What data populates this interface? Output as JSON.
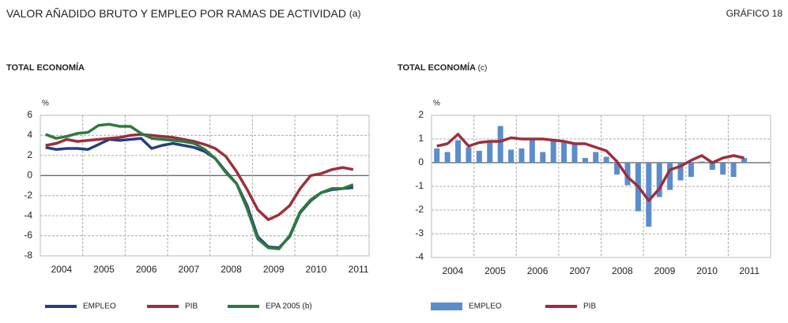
{
  "header": {
    "title": "VALOR AÑADIDO BRUTO Y EMPLEO POR RAMAS DE ACTIVIDAD",
    "title_note": "(a)",
    "figure": "GRÁFICO 18"
  },
  "chart_data": [
    {
      "type": "line",
      "title": "TOTAL ECONOMÍA",
      "ylabel": "%",
      "x": [
        2004.125,
        2004.375,
        2004.625,
        2004.875,
        2005.125,
        2005.375,
        2005.625,
        2005.875,
        2006.125,
        2006.375,
        2006.625,
        2006.875,
        2007.125,
        2007.375,
        2007.625,
        2007.875,
        2008.125,
        2008.375,
        2008.625,
        2008.875,
        2009.125,
        2009.375,
        2009.625,
        2009.875,
        2010.125,
        2010.375,
        2010.625,
        2010.875,
        2011.125,
        2011.375
      ],
      "xlim": [
        2004,
        2011.75
      ],
      "xticks": [
        {
          "value": 2004.5,
          "label": "2004"
        },
        {
          "value": 2005.5,
          "label": "2005"
        },
        {
          "value": 2006.5,
          "label": "2006"
        },
        {
          "value": 2007.5,
          "label": "2007"
        },
        {
          "value": 2008.5,
          "label": "2008"
        },
        {
          "value": 2009.5,
          "label": "2009"
        },
        {
          "value": 2010.5,
          "label": "2010"
        },
        {
          "value": 2011.5,
          "label": "2011"
        }
      ],
      "ylim": [
        -8,
        6
      ],
      "yticks": [
        -8,
        -6,
        -4,
        -2,
        0,
        2,
        4,
        6
      ],
      "grid": true,
      "series": [
        {
          "name": "EMPLEO",
          "color": "#243f80",
          "values": [
            2.8,
            2.6,
            2.7,
            2.7,
            2.6,
            3.1,
            3.6,
            3.5,
            3.6,
            3.7,
            2.7,
            3.0,
            3.2,
            3.0,
            2.8,
            2.4,
            1.7,
            0.4,
            -0.8,
            -3.0,
            -6.1,
            -7.1,
            -7.2,
            -6.1,
            -3.7,
            -2.5,
            -1.7,
            -1.4,
            -1.3,
            -1.2
          ]
        },
        {
          "name": "PIB",
          "color": "#9c2f3d",
          "values": [
            3.0,
            3.2,
            3.6,
            3.4,
            3.5,
            3.6,
            3.7,
            3.8,
            4.0,
            4.1,
            4.0,
            3.9,
            3.8,
            3.6,
            3.4,
            3.1,
            2.7,
            1.9,
            0.4,
            -1.4,
            -3.4,
            -4.4,
            -3.9,
            -3.0,
            -1.3,
            0.0,
            0.2,
            0.6,
            0.8,
            0.6
          ]
        },
        {
          "name": "EPA 2005 (b)",
          "color": "#2e7b3f",
          "values": [
            4.1,
            3.7,
            3.9,
            4.2,
            4.3,
            5.0,
            5.1,
            4.9,
            4.9,
            4.2,
            3.7,
            3.6,
            3.5,
            3.4,
            3.2,
            2.6,
            1.7,
            0.3,
            -0.8,
            -3.3,
            -6.3,
            -7.2,
            -7.3,
            -6.0,
            -3.6,
            -2.4,
            -1.7,
            -1.3,
            -1.3,
            -0.9
          ]
        }
      ]
    },
    {
      "type": "combo",
      "title": "TOTAL ECONOMÍA",
      "title_note": "(c)",
      "ylabel": "%",
      "x": [
        2004.125,
        2004.375,
        2004.625,
        2004.875,
        2005.125,
        2005.375,
        2005.625,
        2005.875,
        2006.125,
        2006.375,
        2006.625,
        2006.875,
        2007.125,
        2007.375,
        2007.625,
        2007.875,
        2008.125,
        2008.375,
        2008.625,
        2008.875,
        2009.125,
        2009.375,
        2009.625,
        2009.875,
        2010.125,
        2010.375,
        2010.625,
        2010.875,
        2011.125,
        2011.375
      ],
      "xlim": [
        2004,
        2012
      ],
      "xticks": [
        {
          "value": 2004.5,
          "label": "2004"
        },
        {
          "value": 2005.5,
          "label": "2005"
        },
        {
          "value": 2006.5,
          "label": "2006"
        },
        {
          "value": 2007.5,
          "label": "2007"
        },
        {
          "value": 2008.5,
          "label": "2008"
        },
        {
          "value": 2009.5,
          "label": "2009"
        },
        {
          "value": 2010.5,
          "label": "2010"
        },
        {
          "value": 2011.5,
          "label": "2011"
        }
      ],
      "ylim": [
        -4,
        2
      ],
      "yticks": [
        -4,
        -3,
        -2,
        -1,
        0,
        1,
        2
      ],
      "grid": true,
      "series": [
        {
          "name": "EMPLEO",
          "type": "bar",
          "color": "#5b8dcc",
          "values": [
            0.6,
            0.45,
            0.95,
            0.65,
            0.5,
            0.95,
            1.55,
            0.55,
            0.6,
            1.0,
            0.45,
            0.95,
            0.85,
            0.75,
            0.2,
            0.45,
            0.25,
            -0.5,
            -0.95,
            -2.05,
            -2.7,
            -1.45,
            -1.15,
            -0.75,
            -0.6,
            0.05,
            -0.3,
            -0.5,
            -0.6,
            0.2
          ]
        },
        {
          "name": "PIB",
          "type": "line",
          "color": "#9c2f3d",
          "values": [
            0.7,
            0.8,
            1.2,
            0.7,
            0.85,
            0.9,
            0.9,
            1.05,
            1.0,
            1.0,
            1.0,
            0.95,
            0.9,
            0.8,
            0.8,
            0.65,
            0.5,
            0.05,
            -0.6,
            -1.0,
            -1.6,
            -1.1,
            -0.3,
            -0.15,
            0.1,
            0.3,
            0.0,
            0.2,
            0.3,
            0.2
          ]
        }
      ]
    }
  ]
}
